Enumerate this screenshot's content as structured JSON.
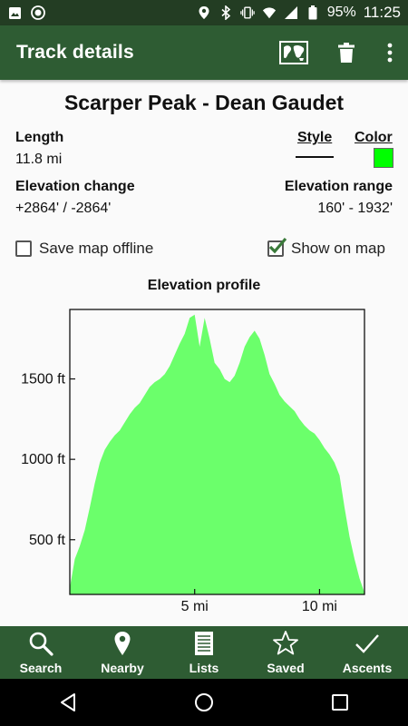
{
  "status_bar": {
    "battery": "95%",
    "time": "11:25"
  },
  "app_bar": {
    "title": "Track details"
  },
  "track": {
    "name": "Scarper Peak - Dean Gaudet",
    "length_label": "Length",
    "length_value": "11.8 mi",
    "style_label": "Style",
    "color_label": "Color",
    "line_color": "#00ff00",
    "elev_change_label": "Elevation change",
    "elev_change_value": "+2864' / -2864'",
    "elev_range_label": "Elevation range",
    "elev_range_value": "160' - 1932'"
  },
  "options": {
    "save_offline_label": "Save map offline",
    "save_offline_checked": false,
    "show_on_map_label": "Show on map",
    "show_on_map_checked": true
  },
  "chart_data": {
    "type": "area",
    "title": "Elevation profile",
    "x_unit": "mi",
    "y_unit": "ft",
    "xlim": [
      0,
      11.8
    ],
    "ylim": [
      160,
      1932
    ],
    "x_ticks": [
      {
        "value": 5,
        "label": "5 mi"
      },
      {
        "value": 10,
        "label": "10 mi"
      }
    ],
    "y_ticks": [
      {
        "value": 500,
        "label": "500 ft"
      },
      {
        "value": 1000,
        "label": "1000 ft"
      },
      {
        "value": 1500,
        "label": "1500 ft"
      }
    ],
    "fill_color": "#6bff6b",
    "x": [
      0,
      0.2,
      0.4,
      0.6,
      0.8,
      1.0,
      1.2,
      1.4,
      1.6,
      1.8,
      2.0,
      2.2,
      2.4,
      2.6,
      2.8,
      3.0,
      3.2,
      3.4,
      3.6,
      3.8,
      4.0,
      4.2,
      4.4,
      4.6,
      4.8,
      5.0,
      5.2,
      5.4,
      5.6,
      5.8,
      6.0,
      6.2,
      6.4,
      6.6,
      6.8,
      7.0,
      7.2,
      7.4,
      7.6,
      7.8,
      8.0,
      8.2,
      8.4,
      8.6,
      8.8,
      9.0,
      9.2,
      9.4,
      9.6,
      9.8,
      10.0,
      10.2,
      10.4,
      10.6,
      10.8,
      11.0,
      11.2,
      11.4,
      11.6,
      11.8
    ],
    "y": [
      200,
      380,
      460,
      560,
      700,
      850,
      980,
      1060,
      1110,
      1150,
      1180,
      1230,
      1280,
      1320,
      1350,
      1400,
      1450,
      1480,
      1500,
      1530,
      1580,
      1650,
      1720,
      1780,
      1880,
      1900,
      1700,
      1880,
      1750,
      1600,
      1560,
      1500,
      1480,
      1520,
      1600,
      1700,
      1760,
      1800,
      1750,
      1650,
      1530,
      1470,
      1400,
      1360,
      1330,
      1300,
      1250,
      1210,
      1180,
      1160,
      1120,
      1070,
      1030,
      980,
      900,
      700,
      520,
      380,
      260,
      170
    ]
  },
  "bottom_nav": [
    {
      "label": "Search",
      "icon": "search-icon"
    },
    {
      "label": "Nearby",
      "icon": "location-pin-icon"
    },
    {
      "label": "Lists",
      "icon": "list-icon"
    },
    {
      "label": "Saved",
      "icon": "star-icon"
    },
    {
      "label": "Ascents",
      "icon": "checkmark-icon"
    }
  ]
}
